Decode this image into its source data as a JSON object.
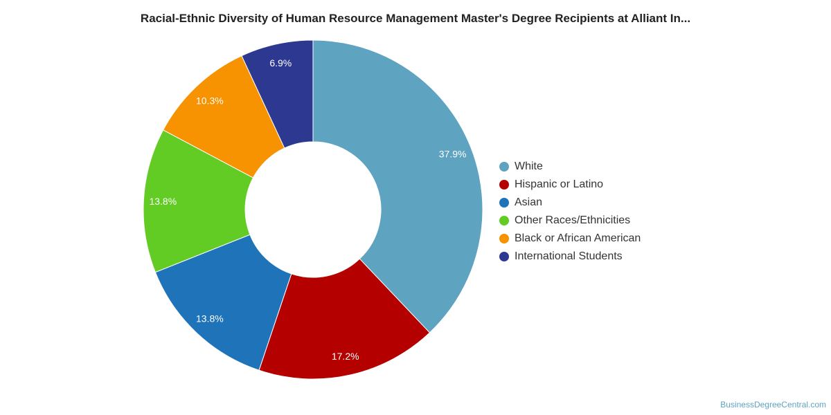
{
  "chart_data": {
    "type": "pie",
    "title": "Racial-Ethnic Diversity of Human Resource Management Master's Degree Recipients at Alliant In...",
    "donut": true,
    "legend_position": "right",
    "slices": [
      {
        "label": "White",
        "value": 37.9,
        "value_label": "37.9%",
        "color": "#5ea3c0"
      },
      {
        "label": "Hispanic or Latino",
        "value": 17.2,
        "value_label": "17.2%",
        "color": "#b50000"
      },
      {
        "label": "Asian",
        "value": 13.8,
        "value_label": "13.8%",
        "color": "#1f73b9"
      },
      {
        "label": "Other Races/Ethnicities",
        "value": 13.8,
        "value_label": "13.8%",
        "color": "#62cc24"
      },
      {
        "label": "Black or African American",
        "value": 10.3,
        "value_label": "10.3%",
        "color": "#f79200"
      },
      {
        "label": "International Students",
        "value": 6.9,
        "value_label": "6.9%",
        "color": "#2d3891"
      }
    ]
  },
  "source_text": "BusinessDegreeCentral.com"
}
